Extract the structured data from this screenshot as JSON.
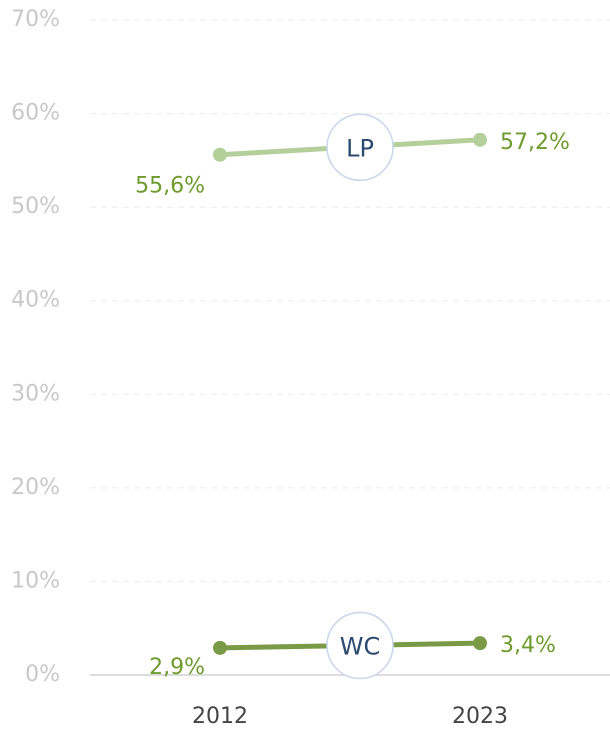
{
  "chart_data": {
    "type": "line",
    "categories": [
      "2012",
      "2023"
    ],
    "series": [
      {
        "name": "LP",
        "color": "#b5cf9a",
        "values": [
          55.6,
          57.2
        ],
        "value_labels": [
          "55,6%",
          "57,2%"
        ]
      },
      {
        "name": "WC",
        "color": "#7a9a45",
        "values": [
          2.9,
          3.4
        ],
        "value_labels": [
          "2,9%",
          "3,4%"
        ]
      }
    ],
    "ylim": [
      0,
      70
    ],
    "yticks": [
      {
        "value": 0,
        "label": "0%"
      },
      {
        "value": 10,
        "label": "10%"
      },
      {
        "value": 20,
        "label": "20%"
      },
      {
        "value": 30,
        "label": "30%"
      },
      {
        "value": 40,
        "label": "40%"
      },
      {
        "value": 50,
        "label": "50%"
      },
      {
        "value": 60,
        "label": "60%"
      },
      {
        "value": 70,
        "label": "70%"
      }
    ],
    "grid": true
  }
}
